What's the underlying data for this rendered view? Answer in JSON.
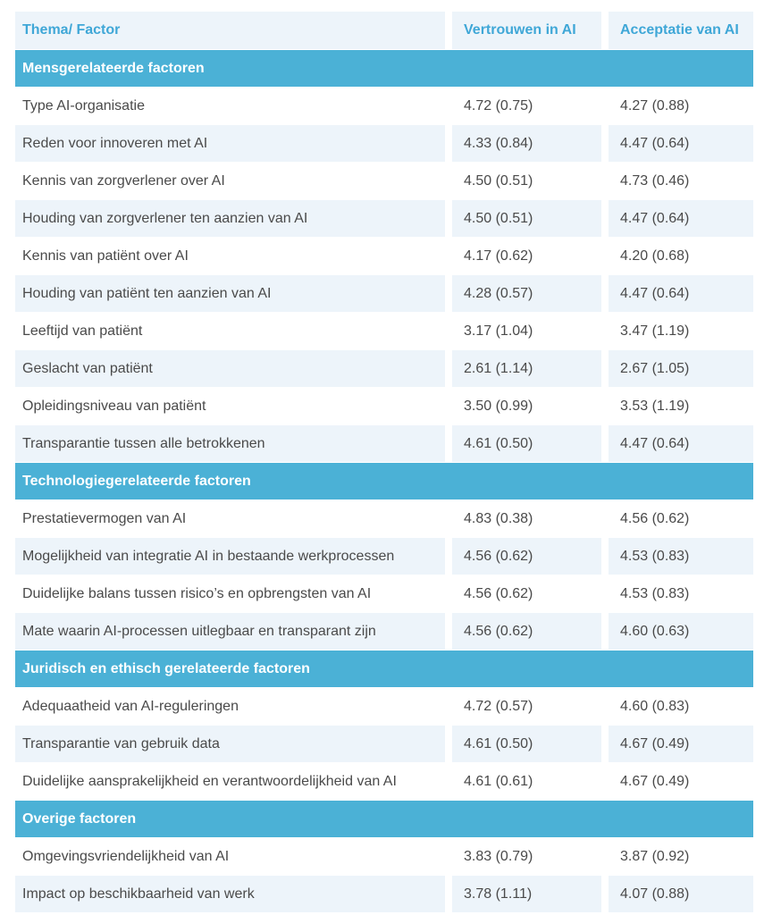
{
  "table": {
    "columns": [
      "Thema/ Factor",
      "Vertrouwen in AI",
      "Acceptatie van AI"
    ],
    "sections": [
      {
        "title": "Mensgerelateerde factoren",
        "rows": [
          {
            "factor": "Type AI-organisatie",
            "vertrouwen": "4.72 (0.75)",
            "acceptatie": "4.27 (0.88)"
          },
          {
            "factor": "Reden voor innoveren met AI",
            "vertrouwen": "4.33 (0.84)",
            "acceptatie": "4.47 (0.64)"
          },
          {
            "factor": "Kennis van zorgverlener over AI",
            "vertrouwen": "4.50 (0.51)",
            "acceptatie": "4.73 (0.46)"
          },
          {
            "factor": "Houding van zorgverlener ten aanzien van AI",
            "vertrouwen": "4.50 (0.51)",
            "acceptatie": "4.47 (0.64)"
          },
          {
            "factor": "Kennis van patiënt over AI",
            "vertrouwen": "4.17 (0.62)",
            "acceptatie": "4.20 (0.68)"
          },
          {
            "factor": "Houding van patiënt ten aanzien van AI",
            "vertrouwen": "4.28 (0.57)",
            "acceptatie": "4.47 (0.64)"
          },
          {
            "factor": "Leeftijd van patiënt",
            "vertrouwen": "3.17 (1.04)",
            "acceptatie": "3.47 (1.19)"
          },
          {
            "factor": "Geslacht van patiënt",
            "vertrouwen": "2.61 (1.14)",
            "acceptatie": "2.67 (1.05)"
          },
          {
            "factor": "Opleidingsniveau van patiënt",
            "vertrouwen": "3.50 (0.99)",
            "acceptatie": "3.53 (1.19)"
          },
          {
            "factor": "Transparantie tussen alle betrokkenen",
            "vertrouwen": "4.61 (0.50)",
            "acceptatie": "4.47 (0.64)"
          }
        ]
      },
      {
        "title": "Technologiegerelateerde factoren",
        "rows": [
          {
            "factor": "Prestatievermogen van AI",
            "vertrouwen": "4.83 (0.38)",
            "acceptatie": "4.56 (0.62)"
          },
          {
            "factor": "Mogelijkheid van integratie AI in bestaande werkprocessen",
            "vertrouwen": "4.56 (0.62)",
            "acceptatie": "4.53 (0.83)"
          },
          {
            "factor": "Duidelijke balans tussen risico’s en opbrengsten van AI",
            "vertrouwen": "4.56 (0.62)",
            "acceptatie": "4.53 (0.83)"
          },
          {
            "factor": "Mate waarin AI-processen uitlegbaar en transparant zijn",
            "vertrouwen": "4.56 (0.62)",
            "acceptatie": "4.60 (0.63)"
          }
        ]
      },
      {
        "title": "Juridisch en ethisch gerelateerde factoren",
        "rows": [
          {
            "factor": "Adequaatheid van AI-reguleringen",
            "vertrouwen": "4.72 (0.57)",
            "acceptatie": "4.60 (0.83)"
          },
          {
            "factor": "Transparantie van gebruik data",
            "vertrouwen": "4.61 (0.50)",
            "acceptatie": "4.67 (0.49)"
          },
          {
            "factor": "Duidelijke aansprakelijkheid en verantwoordelijkheid van AI",
            "vertrouwen": "4.61 (0.61)",
            "acceptatie": "4.67 (0.49)"
          }
        ]
      },
      {
        "title": "Overige factoren",
        "rows": [
          {
            "factor": "Omgevingsvriendelijkheid van AI",
            "vertrouwen": "3.83 (0.79)",
            "acceptatie": "3.87 (0.92)"
          },
          {
            "factor": "Impact op beschikbaarheid van werk",
            "vertrouwen": "3.78 (1.11)",
            "acceptatie": "4.07 (0.88)"
          }
        ]
      }
    ]
  },
  "colors": {
    "section_bar": "#4bb1d6",
    "header_text": "#3fa7d7",
    "stripe_bg": "#edf4fa",
    "body_text": "#4a4a4a"
  }
}
